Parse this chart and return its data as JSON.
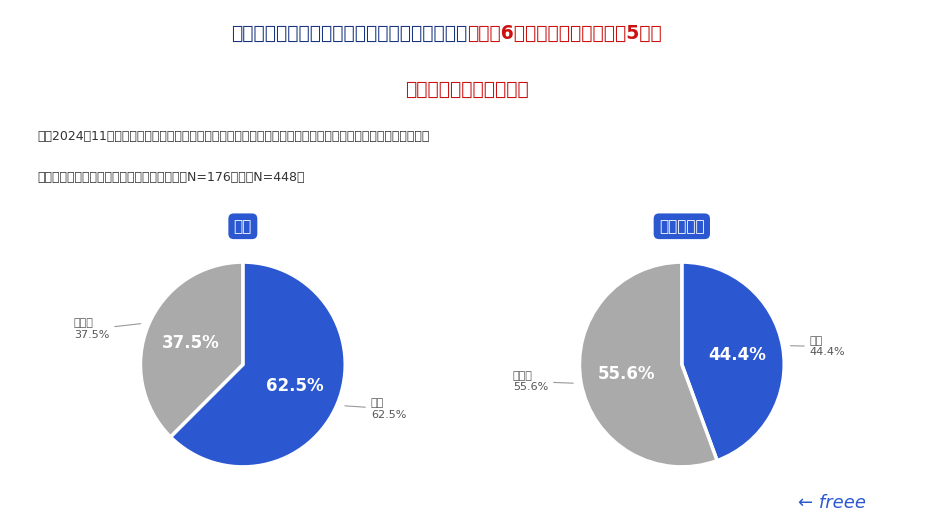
{
  "title_pre": "新法対応が義務だと知っていると答えた割合は",
  "title_highlight": "法人で6割強、個人事業主では5割弱",
  "title_line2": "認知度とほぼ同じ結果に",
  "question_line1": "問：2024年11月以降、企業からフリーランスに発注を行う場合、フリーランス新法に沿った対応をすることが",
  "question_line2": "義務だということを知っていますか？（法人N=176、個人N=448）",
  "chart1_label": "法人",
  "chart2_label": "個人事業主",
  "chart1_hai": 62.5,
  "chart1_iie": 37.5,
  "chart2_hai": 44.4,
  "chart2_iie": 55.6,
  "color_blue": "#2B58D0",
  "color_gray": "#AAAAAA",
  "header_bg": "#E8EEF8",
  "label_box_color": "#2B58D0",
  "title_dark_color": "#1A3580",
  "title_red_color": "#CC1111",
  "text_color": "#333333",
  "freee_color": "#2B58D0",
  "bg_color": "#FFFFFF"
}
